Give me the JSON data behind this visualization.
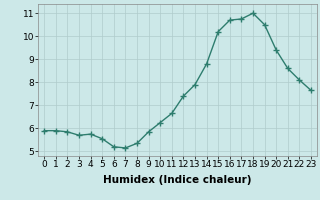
{
  "x": [
    0,
    1,
    2,
    3,
    4,
    5,
    6,
    7,
    8,
    9,
    10,
    11,
    12,
    13,
    14,
    15,
    16,
    17,
    18,
    19,
    20,
    21,
    22,
    23
  ],
  "y": [
    5.9,
    5.9,
    5.85,
    5.7,
    5.75,
    5.55,
    5.2,
    5.15,
    5.35,
    5.85,
    6.25,
    6.65,
    7.4,
    7.9,
    8.8,
    10.2,
    10.7,
    10.75,
    11.0,
    10.5,
    9.4,
    8.6,
    8.1,
    7.65
  ],
  "line_color": "#2e7d6e",
  "marker": "+",
  "marker_color": "#2e7d6e",
  "bg_color": "#cce8e8",
  "grid_color": "#b0cccc",
  "xlabel": "Humidex (Indice chaleur)",
  "xlim": [
    -0.5,
    23.5
  ],
  "ylim": [
    4.8,
    11.4
  ],
  "yticks": [
    5,
    6,
    7,
    8,
    9,
    10,
    11
  ],
  "xticks": [
    0,
    1,
    2,
    3,
    4,
    5,
    6,
    7,
    8,
    9,
    10,
    11,
    12,
    13,
    14,
    15,
    16,
    17,
    18,
    19,
    20,
    21,
    22,
    23
  ],
  "xlabel_fontsize": 7.5,
  "tick_fontsize": 6.5,
  "line_width": 1.0,
  "marker_size": 4
}
